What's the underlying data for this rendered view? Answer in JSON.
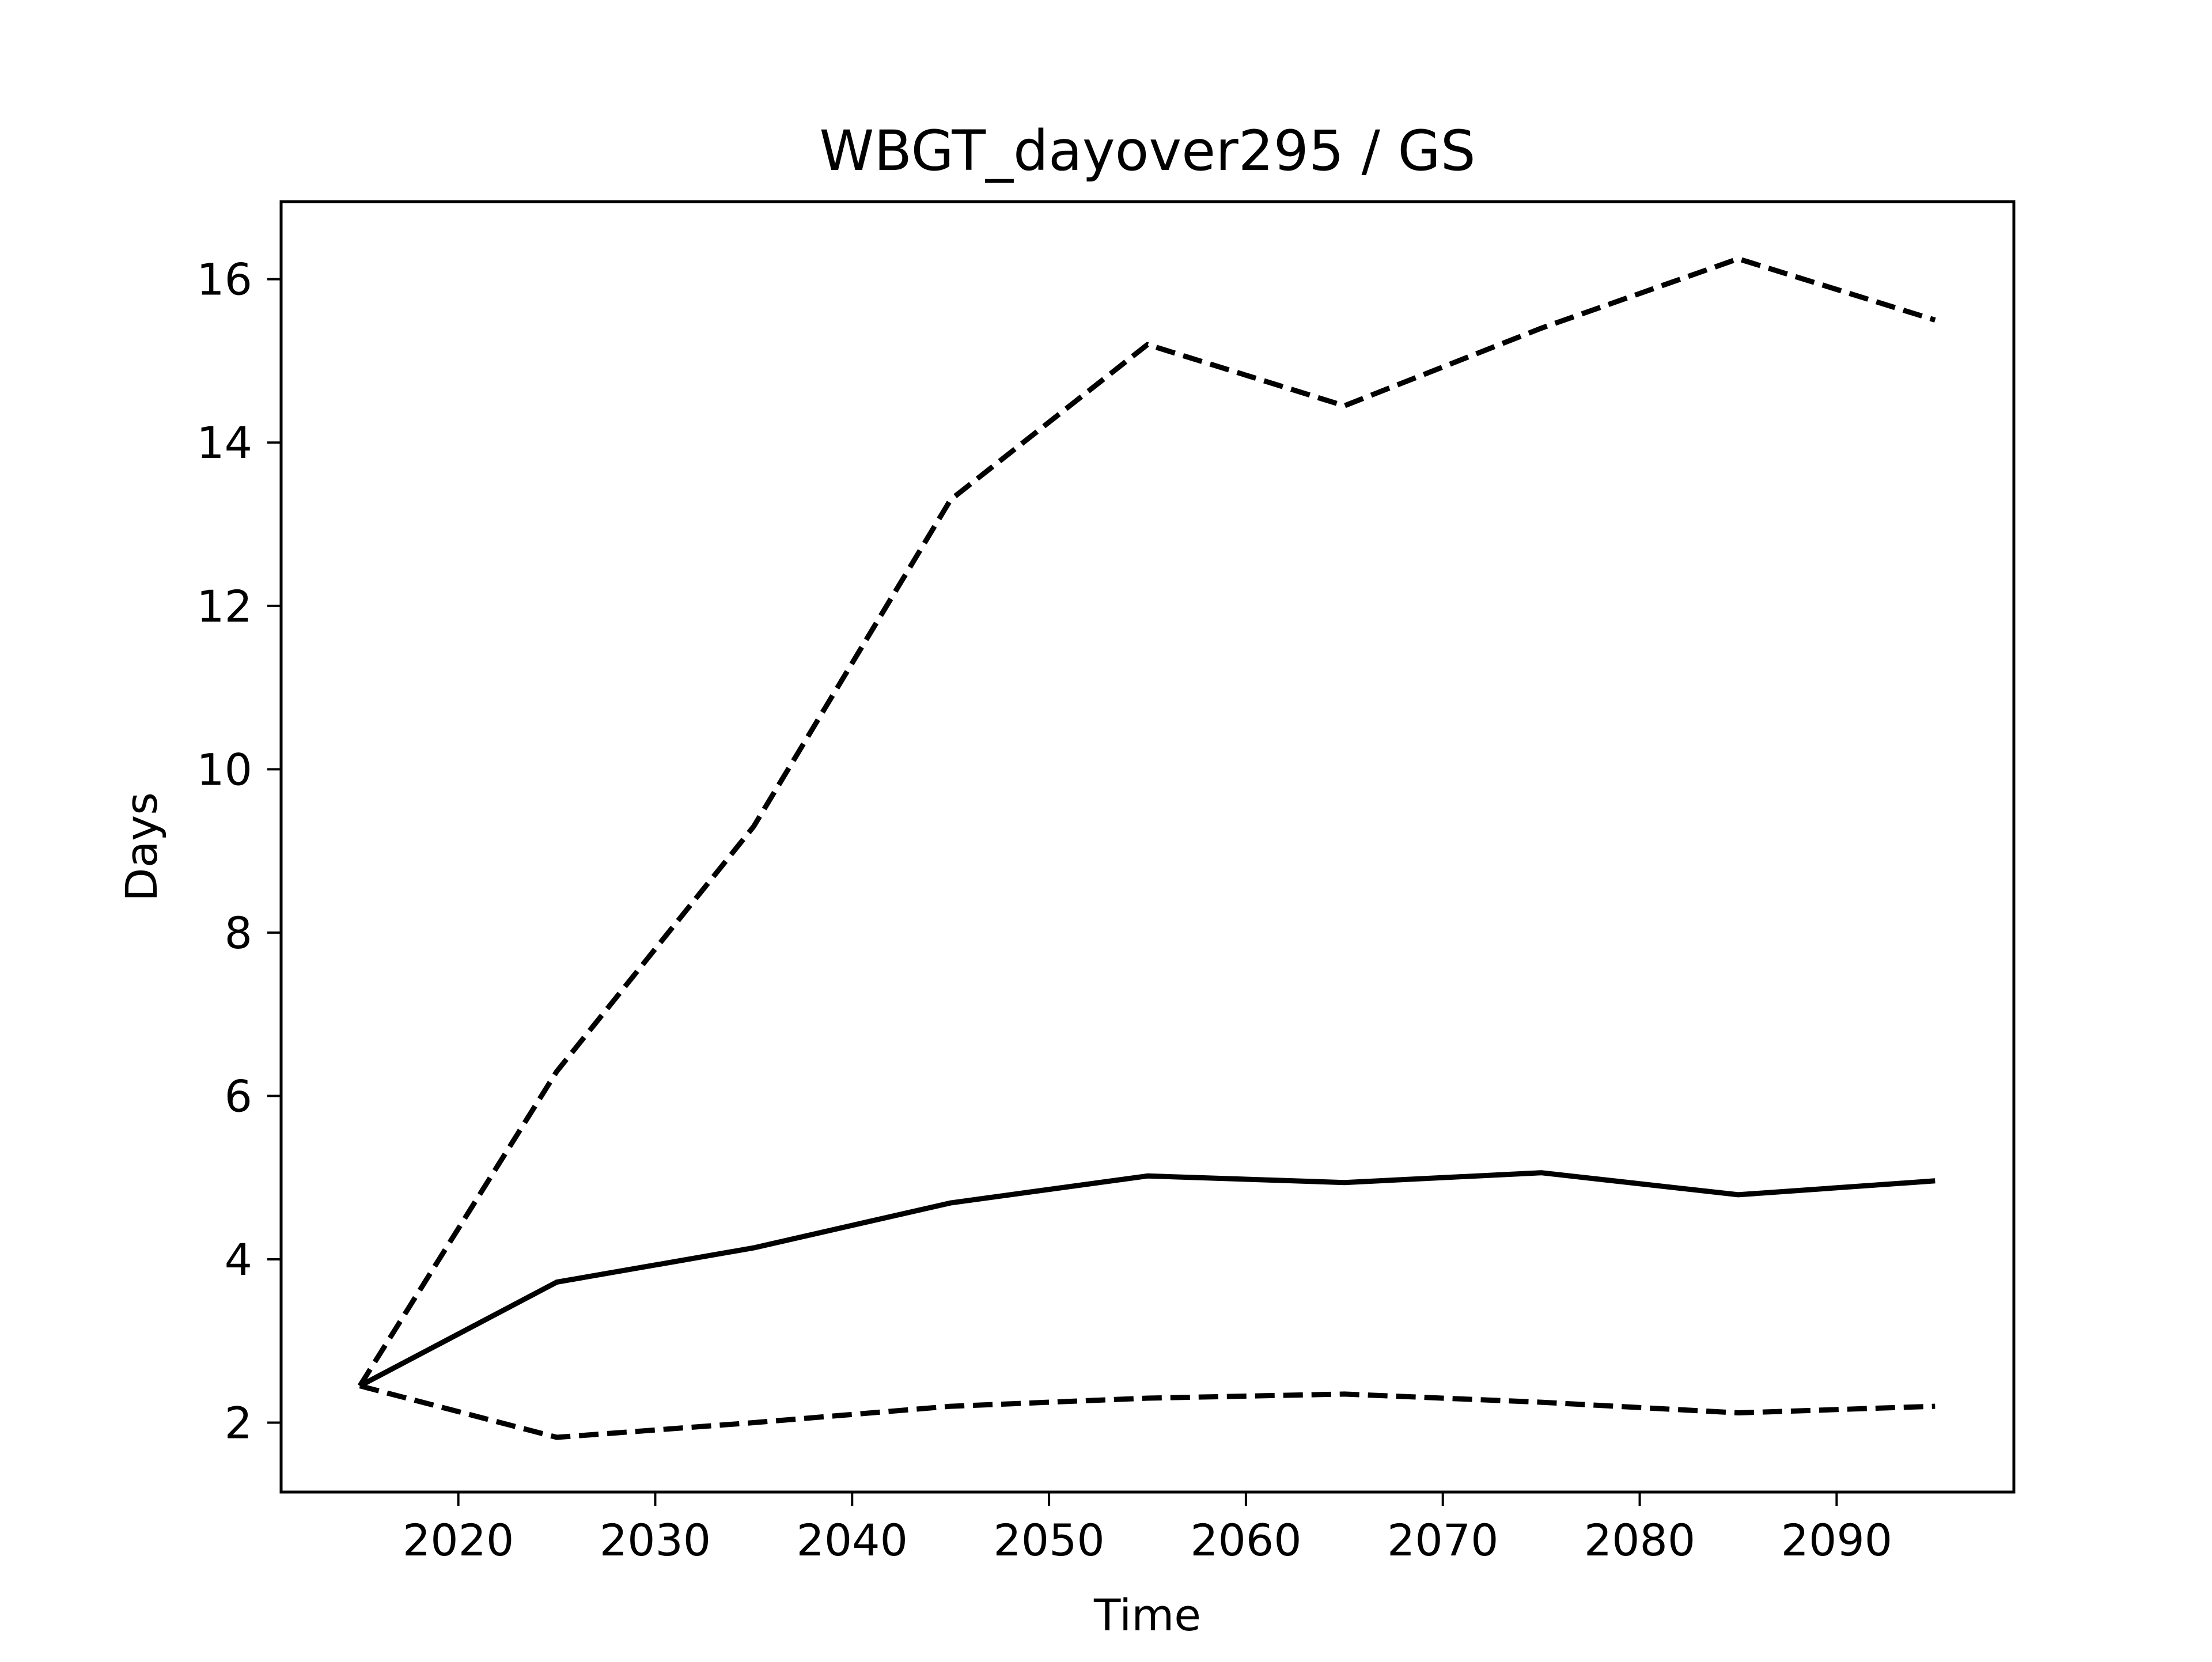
{
  "chart_data": {
    "type": "line",
    "title": "WBGT_dayover295 / GS",
    "xlabel": "Time",
    "ylabel": "Days",
    "xlim": [
      2011,
      2099
    ],
    "ylim": [
      1.15,
      16.95
    ],
    "xticks": [
      2020,
      2030,
      2040,
      2050,
      2060,
      2070,
      2080,
      2090
    ],
    "yticks": [
      2,
      4,
      6,
      8,
      10,
      12,
      14,
      16
    ],
    "grid": false,
    "legend": "none",
    "x": [
      2015,
      2025,
      2035,
      2045,
      2055,
      2065,
      2075,
      2085,
      2095
    ],
    "series": [
      {
        "style": "solid",
        "color": "#000000",
        "values": [
          2.45,
          3.72,
          4.14,
          4.69,
          5.02,
          4.94,
          5.06,
          4.79,
          4.96
        ]
      },
      {
        "style": "dashed",
        "color": "#000000",
        "values": [
          2.45,
          6.3,
          9.3,
          13.3,
          15.2,
          14.45,
          15.4,
          16.25,
          15.5
        ]
      },
      {
        "style": "dashed",
        "color": "#000000",
        "values": [
          2.45,
          1.82,
          2.0,
          2.2,
          2.3,
          2.35,
          2.25,
          2.12,
          2.2
        ]
      }
    ]
  }
}
